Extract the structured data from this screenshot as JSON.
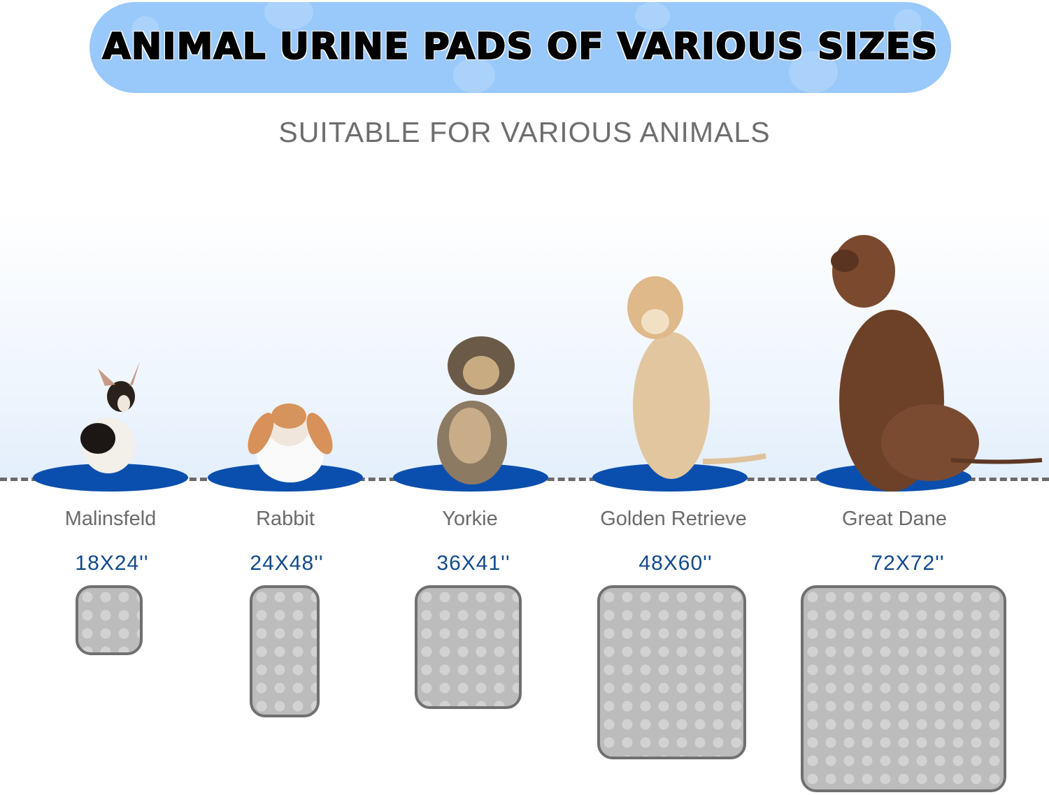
{
  "banner": {
    "title": "ANIMAL URINE PADS OF VARIOUS SIZES",
    "color": "#99c8fb"
  },
  "subtitle": "SUITABLE FOR VARIOUS ANIMALS",
  "colors": {
    "mat": "#0b4fae",
    "size_text": "#114a8c",
    "label_text": "#6a6a6a",
    "pad": "#c8c8c8"
  },
  "items": [
    {
      "animal": "Malinsfeld",
      "size": "18X24''",
      "image": "chihuahua"
    },
    {
      "animal": "Rabbit",
      "size": "24X48''",
      "image": "lop-rabbit"
    },
    {
      "animal": "Yorkie",
      "size": "36X41''",
      "image": "yorkie"
    },
    {
      "animal": "Golden Retrieve",
      "size": "48X60''",
      "image": "golden-retriever"
    },
    {
      "animal": "Great Dane",
      "size": "72X72''",
      "image": "brown-great-dane"
    }
  ]
}
